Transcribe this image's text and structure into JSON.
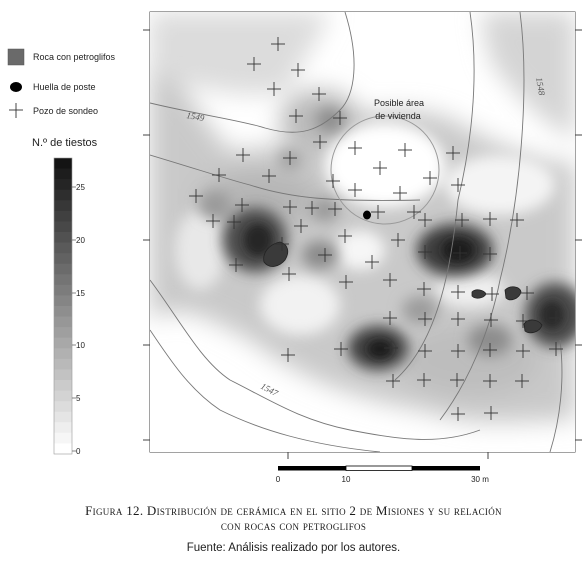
{
  "legend": {
    "items": [
      {
        "label": "Roca con petroglifos",
        "symbol": "dark-square-icon"
      },
      {
        "label": "Huella de poste",
        "symbol": "black-dot-icon"
      },
      {
        "label": "Pozo de sondeo",
        "symbol": "cross-icon"
      }
    ],
    "scale_title": "N.º de tiestos",
    "scale_ticks": [
      "25",
      "20",
      "15",
      "10",
      "5",
      "0"
    ]
  },
  "map": {
    "annotation_line1": "Posible área",
    "annotation_line2": "de vivienda",
    "contours": [
      "1549",
      "1548",
      "1547"
    ],
    "scale_bar": [
      "0",
      "10",
      "30 m"
    ]
  },
  "caption": {
    "title_line1": "Figura 12. Distribución de cerámica en el sitio 2 de Misiones y su relación",
    "title_line2": "con rocas con petroglifos",
    "source": "Fuente: Análisis realizado por los autores."
  }
}
